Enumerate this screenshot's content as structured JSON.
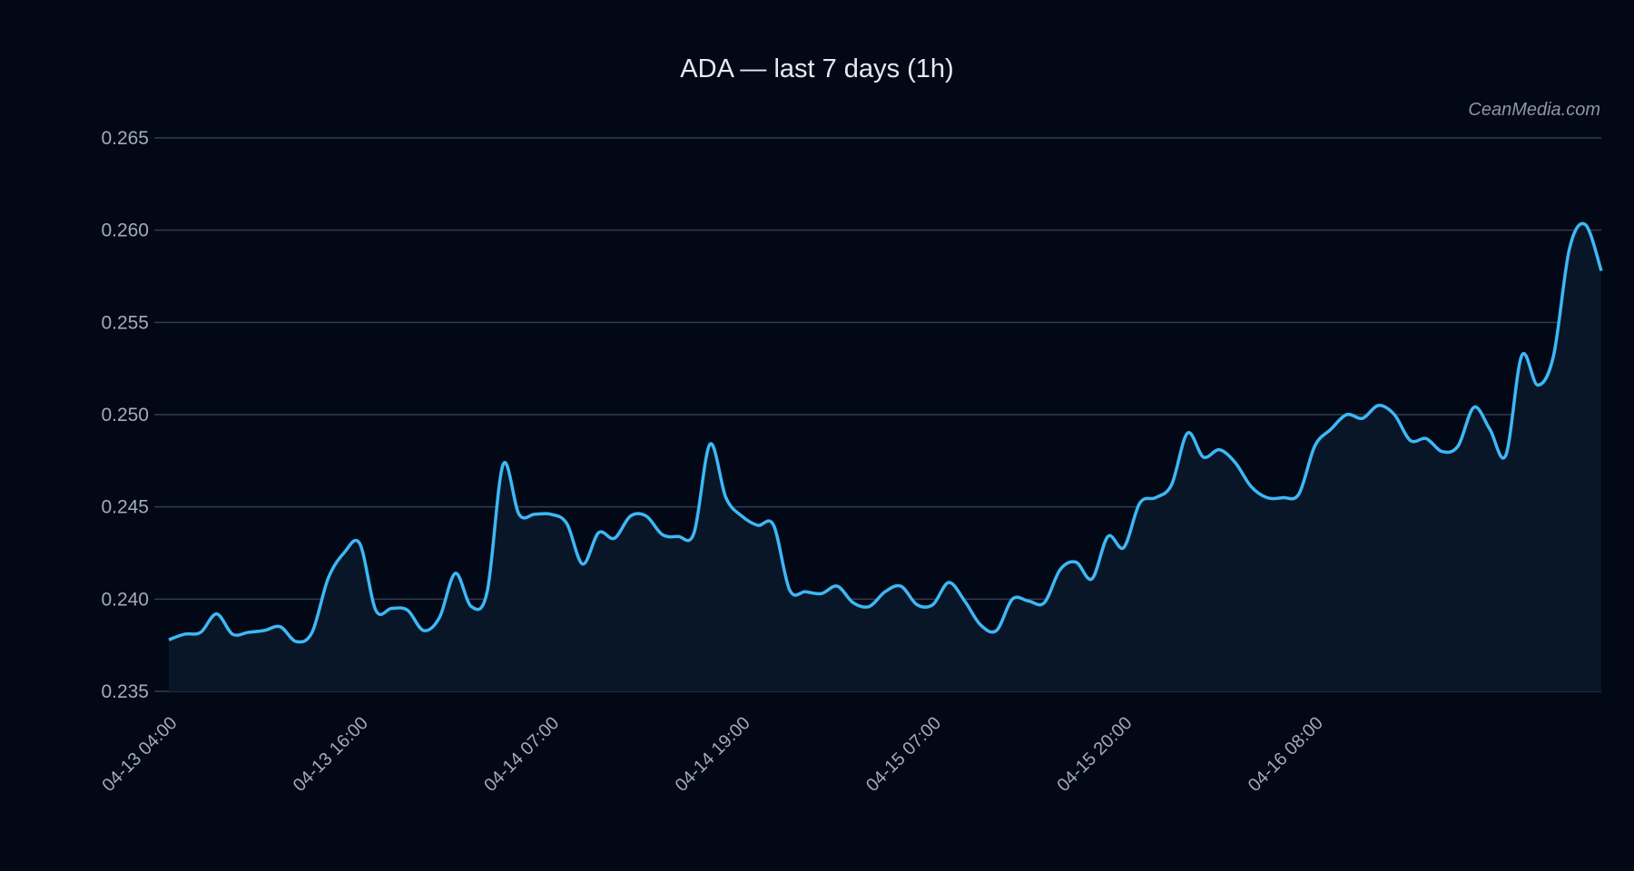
{
  "chart_data": {
    "type": "area",
    "title": "ADA — last 7 days (1h)",
    "xlabel": "",
    "ylabel": "",
    "ylim": [
      0.235,
      0.265
    ],
    "yticks": [
      "0.235",
      "0.240",
      "0.245",
      "0.250",
      "0.255",
      "0.260",
      "0.265"
    ],
    "grid": "horizontal",
    "xtick_labels": [
      "04-13 04:00",
      "04-13 16:00",
      "04-14 07:00",
      "04-14 19:00",
      "04-15 07:00",
      "04-15 20:00",
      "04-16 08:00"
    ],
    "xtick_index": [
      0,
      12,
      24,
      36,
      48,
      60,
      72
    ],
    "line_color": "#3db8f5",
    "fill_color": "#081628",
    "series": [
      {
        "values": [
          0.2378,
          0.2381,
          0.2382,
          0.2392,
          0.2381,
          0.2382,
          0.2383,
          0.2385,
          0.2377,
          0.2382,
          0.2411,
          0.2425,
          0.243,
          0.2394,
          0.2395,
          0.2394,
          0.2383,
          0.239,
          0.2414,
          0.2396,
          0.2404,
          0.2473,
          0.2446,
          0.2446,
          0.2446,
          0.2441,
          0.2419,
          0.2436,
          0.2433,
          0.2445,
          0.2445,
          0.2435,
          0.2434,
          0.2436,
          0.2484,
          0.2455,
          0.2445,
          0.244,
          0.244,
          0.2405,
          0.2404,
          0.2403,
          0.2407,
          0.2398,
          0.2396,
          0.2404,
          0.2407,
          0.2397,
          0.2397,
          0.2409,
          0.2399,
          0.2386,
          0.2383,
          0.24,
          0.2399,
          0.2398,
          0.2416,
          0.242,
          0.2411,
          0.2434,
          0.2428,
          0.2452,
          0.2455,
          0.2462,
          0.249,
          0.2477,
          0.2481,
          0.2474,
          0.2461,
          0.2455,
          0.2455,
          0.2457,
          0.2483,
          0.2492,
          0.25,
          0.2498,
          0.2505,
          0.25,
          0.2486,
          0.2487,
          0.248,
          0.2483,
          0.2504,
          0.2492,
          0.2478,
          0.2532,
          0.2516,
          0.2532,
          0.259,
          0.2603,
          0.2578
        ]
      }
    ]
  },
  "watermark": "CeanMedia.com"
}
